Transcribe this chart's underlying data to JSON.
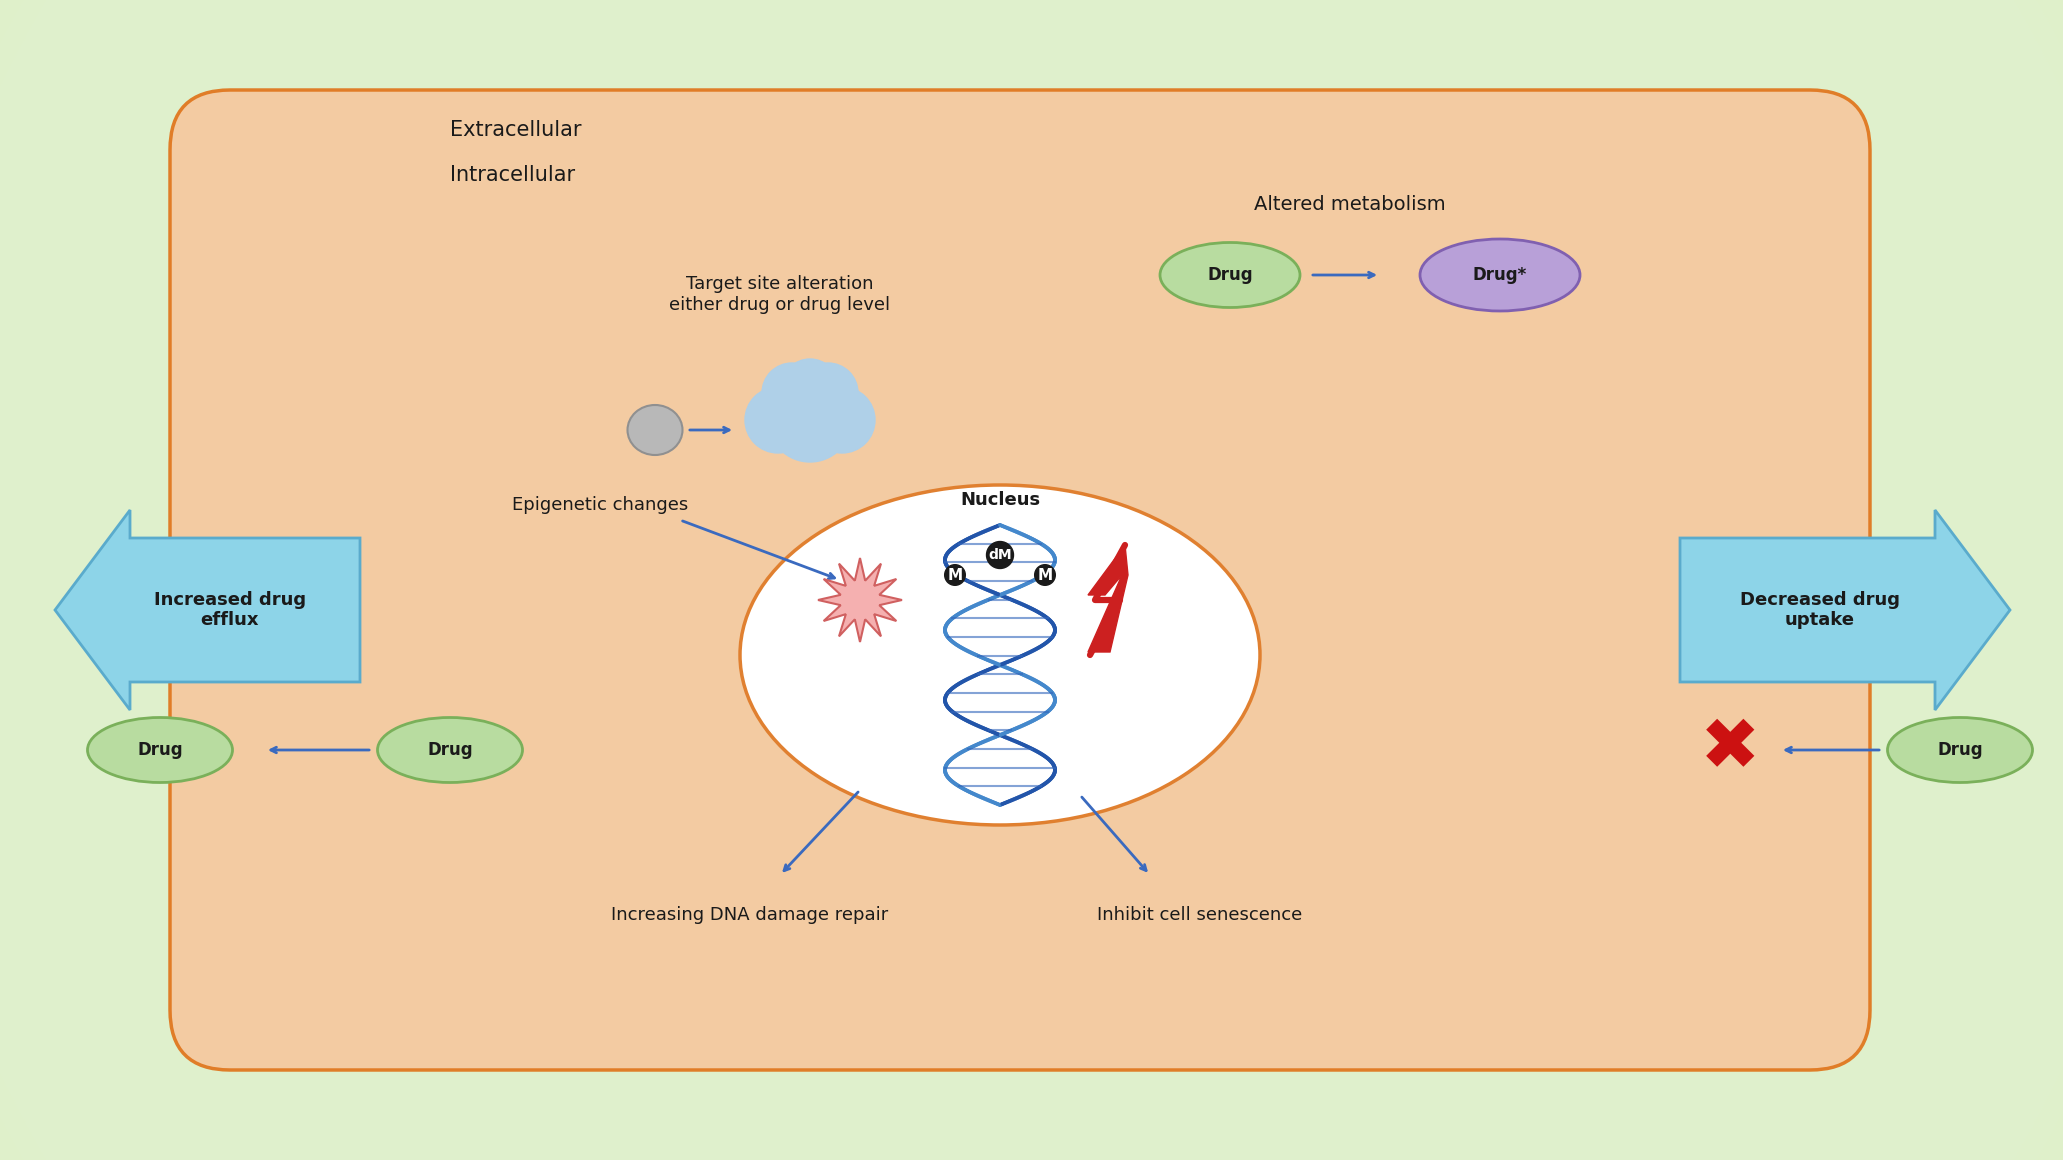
{
  "bg_color_outer": "#dff0c8",
  "bg_color_inner": "#f0f8e0",
  "cell_color": "#f5c9a0",
  "cell_edge_color": "#e07820",
  "nucleus_fill": "#ffffff",
  "nucleus_edge": "#e08030",
  "arrow_color": "#3a6abf",
  "drug_green_color": "#b8dca0",
  "drug_green_edge": "#7ab05a",
  "drug_star_color": "#b8a0d8",
  "drug_star_edge": "#8060b0",
  "efflux_color": "#8dd4e8",
  "efflux_edge": "#5aabcc",
  "text_color": "#1a1a1a",
  "red_x_color": "#cc1111",
  "extracellular_label": "Extracellular",
  "intracellular_label": "Intracellular",
  "altered_metabolism_label": "Altered metabolism",
  "target_site_label": "Target site alteration\neither drug or drug level",
  "epigenetic_label": "Epigenetic changes",
  "nucleus_label": "Nucleus",
  "dna_repair_label": "Increasing DNA damage repair",
  "cell_senescence_label": "Inhibit cell senescence",
  "increased_efflux_label": "Increased drug\nefflux",
  "decreased_uptake_label": "Decreased drug\nuptake",
  "drug_label": "Drug",
  "drug_star_label": "Drug*"
}
